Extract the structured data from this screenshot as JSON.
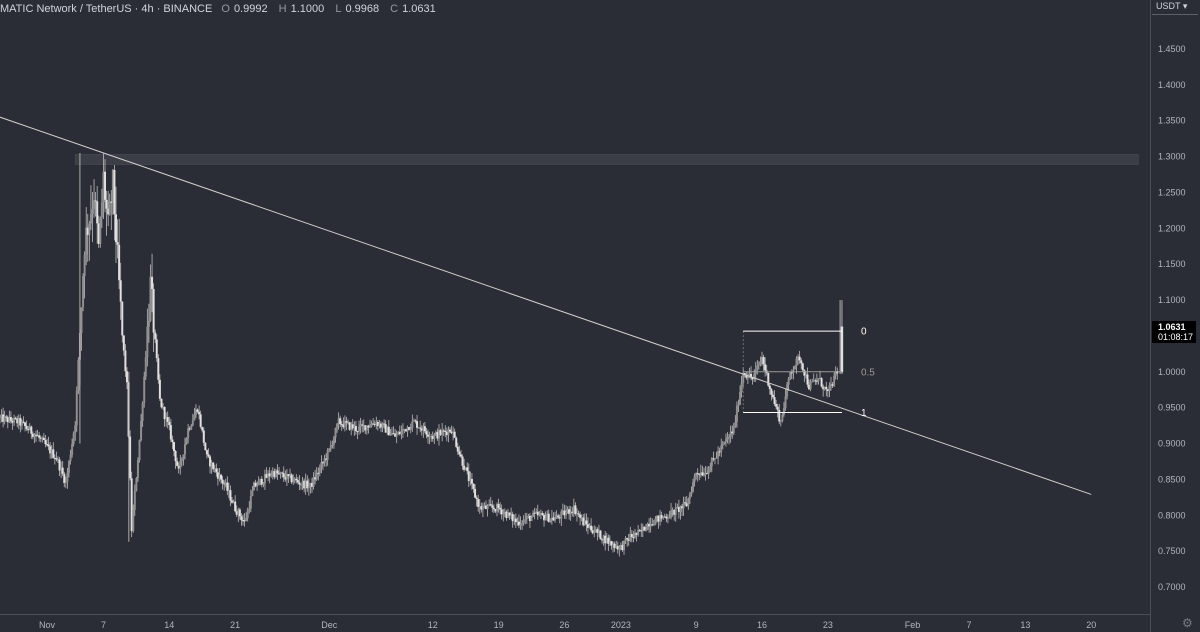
{
  "header": {
    "symbol": "MATIC Network / TetherUS · 4h · BINANCE",
    "open_label": "O",
    "open": "0.9992",
    "high_label": "H",
    "high": "1.1000",
    "low_label": "L",
    "low": "0.9968",
    "close_label": "C",
    "close": "1.0631"
  },
  "axis": {
    "currency": "USDT ▾",
    "last_price": "1.0631",
    "countdown": "01:08:17"
  },
  "colors": {
    "background": "#2a2c36",
    "candle": "#bdbdbd",
    "trendline": "#d0d0d0",
    "zone": "#3b3d47",
    "fib_0": "#ffffff",
    "fib_05": "#9a9a9a",
    "fib_1": "#ffffff"
  },
  "chart_data": {
    "type": "candlestick",
    "timeframe": "4h",
    "ylim": [
      0.67,
      1.52
    ],
    "y_ticks": [
      0.7,
      0.75,
      0.8,
      0.85,
      0.9,
      0.95,
      1.0,
      1.05,
      1.1,
      1.15,
      1.2,
      1.25,
      1.3,
      1.35,
      1.4,
      1.45
    ],
    "y_tick_labels": [
      "0.7000",
      "0.7500",
      "0.8000",
      "0.8500",
      "0.9000",
      "0.9500",
      "1.0000",
      "1.0500",
      "1.1000",
      "1.1500",
      "1.2000",
      "1.2500",
      "1.3000",
      "1.3500",
      "1.4000",
      "1.4500"
    ],
    "x_day_range": [
      -5,
      84
    ],
    "x_ticks": [
      {
        "label": "Nov",
        "day": 0
      },
      {
        "label": "7",
        "day": 6
      },
      {
        "label": "14",
        "day": 13
      },
      {
        "label": "21",
        "day": 20
      },
      {
        "label": "Dec",
        "day": 30
      },
      {
        "label": "12",
        "day": 41
      },
      {
        "label": "19",
        "day": 48
      },
      {
        "label": "26",
        "day": 55
      },
      {
        "label": "2023",
        "day": 61
      },
      {
        "label": "9",
        "day": 69
      },
      {
        "label": "16",
        "day": 76
      },
      {
        "label": "23",
        "day": 83
      },
      {
        "label": "Feb",
        "day": 92
      },
      {
        "label": "7",
        "day": 98
      },
      {
        "label": "13",
        "day": 104
      },
      {
        "label": "20",
        "day": 111
      }
    ],
    "price_path": [
      [
        -5,
        0.935
      ],
      [
        -3,
        0.93
      ],
      [
        -1,
        0.91
      ],
      [
        1,
        0.88
      ],
      [
        2,
        0.845
      ],
      [
        3,
        0.93
      ],
      [
        4,
        1.18
      ],
      [
        5,
        1.25
      ],
      [
        5.5,
        1.17
      ],
      [
        6,
        1.27
      ],
      [
        6.5,
        1.2
      ],
      [
        7,
        1.26
      ],
      [
        8,
        1.05
      ],
      [
        8.5,
        0.98
      ],
      [
        9,
        0.78
      ],
      [
        10,
        0.93
      ],
      [
        11,
        1.12
      ],
      [
        12,
        0.96
      ],
      [
        13,
        0.92
      ],
      [
        14,
        0.86
      ],
      [
        15,
        0.92
      ],
      [
        16,
        0.95
      ],
      [
        17,
        0.88
      ],
      [
        18,
        0.86
      ],
      [
        19,
        0.84
      ],
      [
        20,
        0.81
      ],
      [
        21,
        0.79
      ],
      [
        22,
        0.84
      ],
      [
        24,
        0.86
      ],
      [
        26,
        0.85
      ],
      [
        28,
        0.84
      ],
      [
        30,
        0.89
      ],
      [
        31,
        0.93
      ],
      [
        33,
        0.92
      ],
      [
        35,
        0.93
      ],
      [
        37,
        0.91
      ],
      [
        39,
        0.93
      ],
      [
        41,
        0.91
      ],
      [
        43,
        0.92
      ],
      [
        44,
        0.88
      ],
      [
        46,
        0.81
      ],
      [
        48,
        0.81
      ],
      [
        50,
        0.79
      ],
      [
        52,
        0.8
      ],
      [
        54,
        0.795
      ],
      [
        56,
        0.81
      ],
      [
        57,
        0.79
      ],
      [
        59,
        0.77
      ],
      [
        60,
        0.76
      ],
      [
        61,
        0.755
      ],
      [
        62,
        0.77
      ],
      [
        63,
        0.775
      ],
      [
        64,
        0.79
      ],
      [
        66,
        0.8
      ],
      [
        68,
        0.815
      ],
      [
        69,
        0.86
      ],
      [
        70,
        0.86
      ],
      [
        71,
        0.88
      ],
      [
        72,
        0.9
      ],
      [
        73,
        0.92
      ],
      [
        74,
        1.0
      ],
      [
        75,
        0.99
      ],
      [
        76,
        1.02
      ],
      [
        77,
        0.97
      ],
      [
        78,
        0.93
      ],
      [
        79,
        1.0
      ],
      [
        80,
        1.02
      ],
      [
        81,
        0.98
      ],
      [
        82,
        0.99
      ],
      [
        83,
        0.97
      ],
      [
        84,
        1.0
      ]
    ],
    "last_candle": {
      "open": 0.9992,
      "high": 1.1,
      "low": 0.9968,
      "close": 1.0631
    },
    "annotations": {
      "trendline": {
        "from": {
          "day": -5,
          "price": 1.355
        },
        "to": {
          "day": 111,
          "price": 0.829
        }
      },
      "resistance_zone": {
        "from_day": 3,
        "to_day": 116,
        "price_low": 1.289,
        "price_high": 1.303
      },
      "fibonacci": {
        "from_day": 74,
        "to_day": 84.5,
        "levels": [
          {
            "label": "0",
            "price": 1.0567
          },
          {
            "label": "0.5",
            "price": 1.0
          },
          {
            "label": "1",
            "price": 0.9433
          }
        ]
      }
    }
  }
}
